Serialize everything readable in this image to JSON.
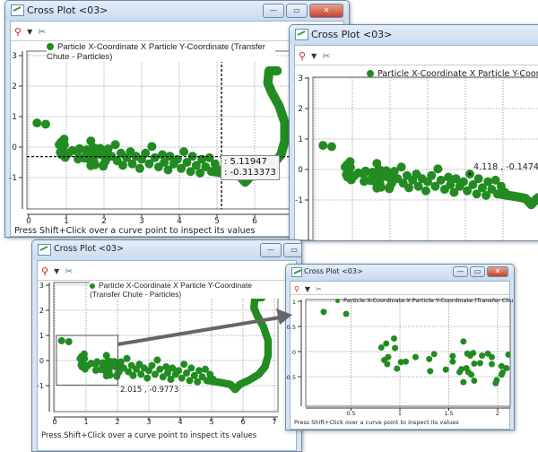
{
  "window_title": "Cross Plot <03>",
  "legend": "Particle X-Coordinate X Particle Y-Coordinate (Transfer Chute - Particles)",
  "status": "Press Shift+Click over a curve point to inspect its values",
  "buttons": {
    "minimize": "—",
    "maximize": "▭",
    "close": "✕"
  },
  "toolbar": {
    "pick_icon": "pick-point-icon",
    "dropdown_icon": "chevron-down-icon",
    "settings_icon": "tools-icon"
  },
  "tooltip": {
    "x_value": ": 5.11947",
    "y_value": ": -0.313373",
    "x": 5.11947,
    "y": -0.313373
  },
  "probe_label": {
    "text": "4.118 , -0.1474",
    "x": 4.118,
    "y": -0.1474
  },
  "zoom_box": {
    "corner_label": "2.015 , -0.9773",
    "x_range": [
      0,
      2.015
    ],
    "y_range": [
      -0.9773,
      1
    ]
  },
  "colors": {
    "series": "#228b22",
    "arrow": "#666666",
    "crosshair": "#000000"
  },
  "chart_data": {
    "type": "scatter",
    "series": [
      {
        "name": "Particle X-Coordinate X Particle Y-Coordinate (Transfer Chute - Particles)",
        "points": [
          [
            0.22,
            0.79
          ],
          [
            0.45,
            0.75
          ],
          [
            0.81,
            0.08
          ],
          [
            0.86,
            0.16
          ],
          [
            0.94,
            0.26
          ],
          [
            0.95,
            0.07
          ],
          [
            0.84,
            -0.17
          ],
          [
            0.87,
            -0.25
          ],
          [
            0.88,
            -0.11
          ],
          [
            0.97,
            -0.34
          ],
          [
            1.01,
            -0.21
          ],
          [
            1.06,
            -0.2
          ],
          [
            1.16,
            -0.11
          ],
          [
            1.3,
            -0.15
          ],
          [
            1.31,
            -0.39
          ],
          [
            1.35,
            -0.05
          ],
          [
            1.47,
            -0.36
          ],
          [
            1.54,
            -0.09
          ],
          [
            1.54,
            -0.2
          ],
          [
            1.61,
            -0.41
          ],
          [
            1.63,
            -0.35
          ],
          [
            1.65,
            0.2
          ],
          [
            1.65,
            -0.61
          ],
          [
            1.68,
            -0.33
          ],
          [
            1.69,
            -0.04
          ],
          [
            1.7,
            -0.41
          ],
          [
            1.72,
            -0.08
          ],
          [
            1.73,
            -0.46
          ],
          [
            1.75,
            -0.03
          ],
          [
            1.76,
            -0.58
          ],
          [
            1.76,
            -0.24
          ],
          [
            1.82,
            -0.23
          ],
          [
            1.84,
            -0.08
          ],
          [
            1.9,
            -0.04
          ],
          [
            1.94,
            -0.11
          ],
          [
            1.94,
            -0.25
          ],
          [
            1.98,
            -0.63
          ],
          [
            1.99,
            -0.57
          ],
          [
            2.04,
            -0.29
          ],
          [
            2.04,
            -0.46
          ],
          [
            2.05,
            -0.42
          ],
          [
            2.09,
            -0.33
          ],
          [
            2.11,
            -0.06
          ],
          [
            2.2,
            -0.3
          ],
          [
            2.3,
            0.08
          ],
          [
            2.35,
            -0.45
          ],
          [
            2.45,
            -0.2
          ],
          [
            2.5,
            -0.6
          ],
          [
            2.6,
            -0.35
          ],
          [
            2.7,
            -0.15
          ],
          [
            2.75,
            -0.55
          ],
          [
            2.85,
            -0.3
          ],
          [
            2.95,
            -0.7
          ],
          [
            3.0,
            -0.4
          ],
          [
            3.1,
            -0.2
          ],
          [
            3.2,
            -0.55
          ],
          [
            3.27,
            0.02
          ],
          [
            3.35,
            -0.35
          ],
          [
            3.45,
            -0.65
          ],
          [
            3.55,
            -0.25
          ],
          [
            3.6,
            -0.5
          ],
          [
            3.7,
            -0.75
          ],
          [
            3.75,
            -0.3
          ],
          [
            3.85,
            -0.55
          ],
          [
            3.95,
            -0.4
          ],
          [
            4.05,
            -0.7
          ],
          [
            4.12,
            -0.15
          ],
          [
            4.2,
            -0.5
          ],
          [
            4.3,
            -0.8
          ],
          [
            4.35,
            -0.3
          ],
          [
            4.45,
            -0.6
          ],
          [
            4.55,
            -0.85
          ],
          [
            4.6,
            -0.4
          ],
          [
            4.7,
            -0.65
          ],
          [
            4.8,
            -0.35
          ],
          [
            4.85,
            -0.8
          ],
          [
            4.95,
            -0.55
          ],
          [
            5.05,
            -0.75
          ]
        ],
        "dense_band": [
          [
            4.9,
            -0.8
          ],
          [
            5.3,
            -0.88
          ],
          [
            5.6,
            -0.95
          ],
          [
            5.75,
            -1.15
          ],
          [
            5.9,
            -0.95
          ],
          [
            6.2,
            -0.78
          ],
          [
            6.5,
            -0.55
          ],
          [
            6.7,
            -0.25
          ],
          [
            6.8,
            0.2
          ],
          [
            6.8,
            0.8
          ],
          [
            6.65,
            1.35
          ],
          [
            6.45,
            1.8
          ],
          [
            6.35,
            2.1
          ],
          [
            6.38,
            2.5
          ],
          [
            6.6,
            2.5
          ]
        ]
      }
    ],
    "views": [
      {
        "window": "main",
        "xlim": [
          0,
          7
        ],
        "ylim": [
          -2,
          3
        ],
        "x_ticks": [
          0,
          1,
          2,
          3,
          4,
          5,
          6
        ],
        "y_ticks": [
          3,
          2,
          1,
          0,
          -1
        ],
        "grid": true
      },
      {
        "window": "zoomed-detail-top",
        "xlim": [
          0,
          6
        ],
        "ylim": [
          -2,
          3
        ],
        "x_ticks": [],
        "y_ticks": [
          3,
          2,
          1,
          0,
          -1
        ],
        "grid": true
      },
      {
        "window": "main-with-zoom-box",
        "xlim": [
          0,
          7
        ],
        "ylim": [
          -2,
          3
        ],
        "x_ticks": [
          0,
          1,
          2,
          3,
          4,
          5,
          6,
          7
        ],
        "y_ticks": [
          3,
          2,
          1,
          0,
          -1
        ],
        "grid": true
      },
      {
        "window": "zoomed-result",
        "xlim": [
          0.015,
          2.12
        ],
        "ylim": [
          -0.98,
          1.03
        ],
        "x_ticks": [
          0.5,
          1,
          1.5,
          2
        ],
        "y_ticks": [
          1,
          0.5,
          0,
          -0.5
        ],
        "grid": true
      }
    ],
    "title": "",
    "xlabel": "",
    "ylabel": ""
  }
}
